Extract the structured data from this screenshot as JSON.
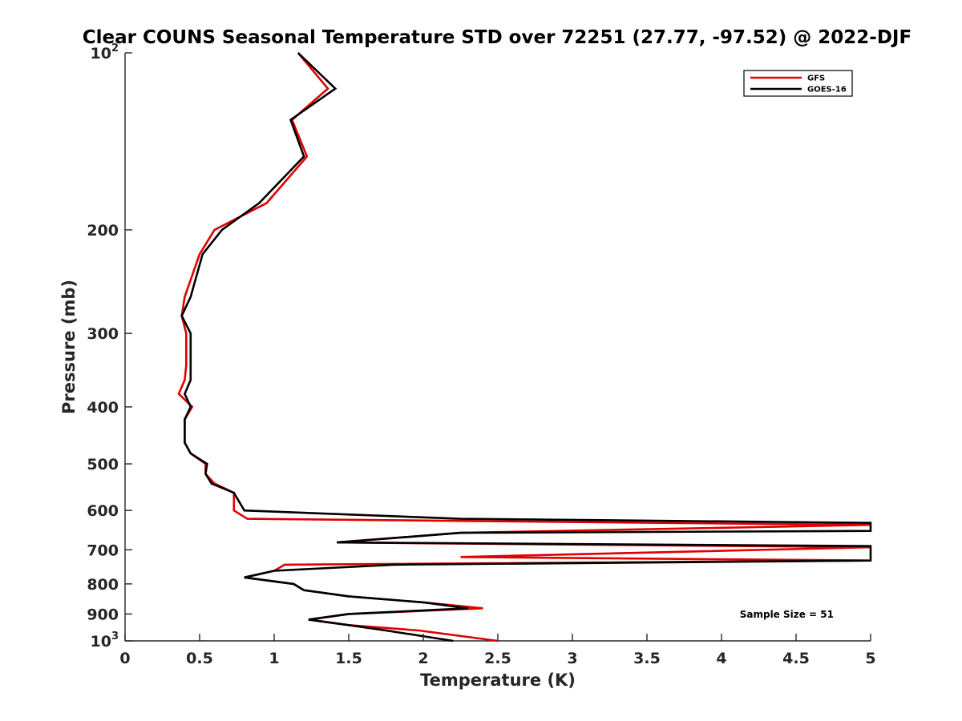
{
  "chart_data": {
    "type": "line",
    "title": "Clear COUNS Seasonal Temperature STD over 72251 (27.77, -97.52) @ 2022-DJF",
    "xlabel": "Temperature (K)",
    "ylabel": "Pressure (mb)",
    "xlim": [
      0,
      5
    ],
    "ylim": [
      100,
      1000
    ],
    "yscale": "log",
    "y_reversed": true,
    "x_ticks": [
      {
        "value": 0,
        "label": "0"
      },
      {
        "value": 0.5,
        "label": "0.5"
      },
      {
        "value": 1,
        "label": "1"
      },
      {
        "value": 1.5,
        "label": "1.5"
      },
      {
        "value": 2,
        "label": "2"
      },
      {
        "value": 2.5,
        "label": "2.5"
      },
      {
        "value": 3,
        "label": "3"
      },
      {
        "value": 3.5,
        "label": "3.5"
      },
      {
        "value": 4,
        "label": "4"
      },
      {
        "value": 4.5,
        "label": "4.5"
      },
      {
        "value": 5,
        "label": "5"
      }
    ],
    "y_ticks": [
      {
        "value": 100,
        "base": "10",
        "exp": "2"
      },
      {
        "value": 200,
        "base": "200",
        "exp": ""
      },
      {
        "value": 300,
        "base": "300",
        "exp": ""
      },
      {
        "value": 400,
        "base": "400",
        "exp": ""
      },
      {
        "value": 500,
        "base": "500",
        "exp": ""
      },
      {
        "value": 600,
        "base": "600",
        "exp": ""
      },
      {
        "value": 700,
        "base": "700",
        "exp": ""
      },
      {
        "value": 800,
        "base": "800",
        "exp": ""
      },
      {
        "value": 900,
        "base": "900",
        "exp": ""
      },
      {
        "value": 1000,
        "base": "10",
        "exp": "3"
      }
    ],
    "grid": false,
    "legend_position": "top-right",
    "annotation": "Sample Size = 51",
    "series": [
      {
        "name": "GFS",
        "color": "#e00000",
        "points": [
          [
            1.16,
            100
          ],
          [
            1.36,
            115
          ],
          [
            1.12,
            130
          ],
          [
            1.22,
            150
          ],
          [
            0.95,
            180
          ],
          [
            0.6,
            200
          ],
          [
            0.5,
            220
          ],
          [
            0.4,
            260
          ],
          [
            0.38,
            280
          ],
          [
            0.41,
            300
          ],
          [
            0.41,
            340
          ],
          [
            0.4,
            360
          ],
          [
            0.36,
            380
          ],
          [
            0.45,
            400
          ],
          [
            0.4,
            420
          ],
          [
            0.4,
            460
          ],
          [
            0.44,
            480
          ],
          [
            0.54,
            500
          ],
          [
            0.54,
            520
          ],
          [
            0.6,
            540
          ],
          [
            0.73,
            560
          ],
          [
            0.73,
            600
          ],
          [
            0.82,
            620
          ],
          [
            5,
            635
          ],
          [
            2.25,
            655
          ],
          [
            1.42,
            680
          ],
          [
            5,
            693
          ],
          [
            2.25,
            720
          ],
          [
            5,
            730
          ],
          [
            1.07,
            742
          ],
          [
            1.0,
            760
          ],
          [
            0.8,
            780
          ],
          [
            1.13,
            800
          ],
          [
            1.2,
            820
          ],
          [
            1.5,
            840
          ],
          [
            2.0,
            860
          ],
          [
            2.4,
            880
          ],
          [
            1.5,
            900
          ],
          [
            1.23,
            920
          ],
          [
            1.5,
            940
          ],
          [
            1.97,
            960
          ],
          [
            2.5,
            1000
          ]
        ]
      },
      {
        "name": "GOES-16",
        "color": "#000000",
        "points": [
          [
            1.16,
            100
          ],
          [
            1.41,
            115
          ],
          [
            1.11,
            130
          ],
          [
            1.2,
            150
          ],
          [
            0.9,
            180
          ],
          [
            0.65,
            200
          ],
          [
            0.52,
            220
          ],
          [
            0.44,
            260
          ],
          [
            0.38,
            280
          ],
          [
            0.44,
            300
          ],
          [
            0.44,
            340
          ],
          [
            0.44,
            360
          ],
          [
            0.4,
            380
          ],
          [
            0.44,
            400
          ],
          [
            0.4,
            420
          ],
          [
            0.4,
            460
          ],
          [
            0.44,
            480
          ],
          [
            0.55,
            500
          ],
          [
            0.54,
            520
          ],
          [
            0.58,
            540
          ],
          [
            0.73,
            560
          ],
          [
            0.8,
            600
          ],
          [
            2.25,
            620
          ],
          [
            5,
            630
          ],
          [
            5,
            650
          ],
          [
            2.25,
            655
          ],
          [
            1.42,
            680
          ],
          [
            5,
            690
          ],
          [
            5,
            730
          ],
          [
            1.8,
            742
          ],
          [
            1.0,
            760
          ],
          [
            0.8,
            780
          ],
          [
            1.13,
            800
          ],
          [
            1.2,
            820
          ],
          [
            1.5,
            840
          ],
          [
            2.0,
            860
          ],
          [
            2.3,
            880
          ],
          [
            1.5,
            900
          ],
          [
            1.23,
            920
          ],
          [
            1.5,
            940
          ],
          [
            1.75,
            960
          ],
          [
            2.2,
            1000
          ]
        ]
      }
    ]
  }
}
